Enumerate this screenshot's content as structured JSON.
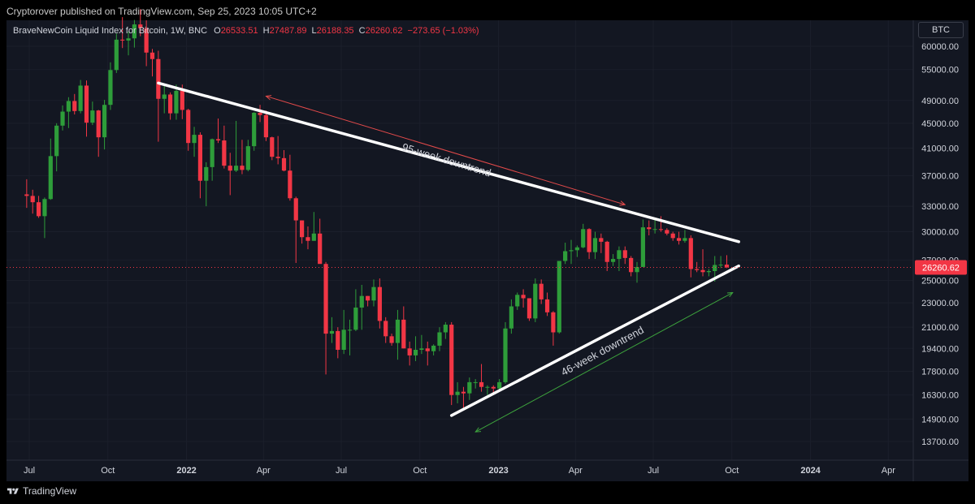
{
  "header": {
    "published": "Cryptorover published on TradingView.com, Sep 25, 2023 10:05 UTC+2"
  },
  "legend": {
    "symbol": "BraveNewCoin Liquid Index for Bitcoin, 1W, BNC",
    "o_label": "O",
    "o_value": "26533.51",
    "h_label": "H",
    "h_value": "27487.89",
    "l_label": "L",
    "l_value": "26188.35",
    "c_label": "C",
    "c_value": "26260.62",
    "change": "−273.65 (−1.03%)"
  },
  "currency_box": "BTC",
  "footer": {
    "brand": "TradingView"
  },
  "colors": {
    "background": "#131722",
    "up": "#26a69a",
    "up_body": "#2e9d3a",
    "down": "#f23645",
    "axis_text": "#d1d4dc",
    "trendline": "#ffffff",
    "arrow_red": "#e34a4a",
    "arrow_green": "#3da33d"
  },
  "chart_data": {
    "type": "candlestick",
    "title": "BraveNewCoin Liquid Index for Bitcoin, 1W, BNC",
    "y_axis": {
      "scale": "log",
      "ticks": [
        "60000.00",
        "55000.00",
        "49000.00",
        "45000.00",
        "41000.00",
        "37000.00",
        "33000.00",
        "30000.00",
        "27000.00",
        "25000.00",
        "23000.00",
        "21000.00",
        "19400.00",
        "17800.00",
        "16300.00",
        "14900.00",
        "13700.00"
      ],
      "last_price": "26260.62"
    },
    "x_axis": {
      "ticks": [
        {
          "label": "Jul",
          "date": "2021-07-01"
        },
        {
          "label": "Oct",
          "date": "2021-10-01"
        },
        {
          "label": "2022",
          "date": "2022-01-01",
          "bold": true
        },
        {
          "label": "Apr",
          "date": "2022-04-01"
        },
        {
          "label": "Jul",
          "date": "2022-07-01"
        },
        {
          "label": "Oct",
          "date": "2022-10-01"
        },
        {
          "label": "2023",
          "date": "2023-01-01",
          "bold": true
        },
        {
          "label": "Apr",
          "date": "2023-04-01"
        },
        {
          "label": "Jul",
          "date": "2023-07-01"
        },
        {
          "label": "Oct",
          "date": "2023-10-01"
        },
        {
          "label": "2024",
          "date": "2024-01-01",
          "bold": true
        },
        {
          "label": "Apr",
          "date": "2024-04-01"
        }
      ]
    },
    "candles": [
      {
        "t": "2021-06-28",
        "o": 34500,
        "h": 36500,
        "l": 32800,
        "c": 34300
      },
      {
        "t": "2021-07-05",
        "o": 34300,
        "h": 35100,
        "l": 32100,
        "c": 33500
      },
      {
        "t": "2021-07-12",
        "o": 33500,
        "h": 34300,
        "l": 31600,
        "c": 31800
      },
      {
        "t": "2021-07-19",
        "o": 31800,
        "h": 34100,
        "l": 29300,
        "c": 33900
      },
      {
        "t": "2021-07-26",
        "o": 33900,
        "h": 42500,
        "l": 33800,
        "c": 39800
      },
      {
        "t": "2021-08-02",
        "o": 39800,
        "h": 45000,
        "l": 37600,
        "c": 44600
      },
      {
        "t": "2021-08-09",
        "o": 44600,
        "h": 48100,
        "l": 43800,
        "c": 47000
      },
      {
        "t": "2021-08-16",
        "o": 47000,
        "h": 49600,
        "l": 44200,
        "c": 48900
      },
      {
        "t": "2021-08-23",
        "o": 48900,
        "h": 50200,
        "l": 46500,
        "c": 47100
      },
      {
        "t": "2021-08-30",
        "o": 47100,
        "h": 52900,
        "l": 46700,
        "c": 51800
      },
      {
        "t": "2021-09-06",
        "o": 51800,
        "h": 52800,
        "l": 42800,
        "c": 45100
      },
      {
        "t": "2021-09-13",
        "o": 45100,
        "h": 48800,
        "l": 44700,
        "c": 47200
      },
      {
        "t": "2021-09-20",
        "o": 47200,
        "h": 47300,
        "l": 39700,
        "c": 42700
      },
      {
        "t": "2021-09-27",
        "o": 42700,
        "h": 49100,
        "l": 40800,
        "c": 48200
      },
      {
        "t": "2021-10-04",
        "o": 48200,
        "h": 56500,
        "l": 47300,
        "c": 54900
      },
      {
        "t": "2021-10-11",
        "o": 54900,
        "h": 62900,
        "l": 54300,
        "c": 61500
      },
      {
        "t": "2021-10-18",
        "o": 61500,
        "h": 66900,
        "l": 59600,
        "c": 61300
      },
      {
        "t": "2021-10-25",
        "o": 61300,
        "h": 63400,
        "l": 58000,
        "c": 61800
      },
      {
        "t": "2021-11-01",
        "o": 61800,
        "h": 66200,
        "l": 59700,
        "c": 65100
      },
      {
        "t": "2021-11-08",
        "o": 65100,
        "h": 68900,
        "l": 62300,
        "c": 64200
      },
      {
        "t": "2021-11-15",
        "o": 64200,
        "h": 66100,
        "l": 55700,
        "c": 58600
      },
      {
        "t": "2021-11-22",
        "o": 58600,
        "h": 59400,
        "l": 53600,
        "c": 57200
      },
      {
        "t": "2021-11-29",
        "o": 57200,
        "h": 59000,
        "l": 42000,
        "c": 49300
      },
      {
        "t": "2021-12-06",
        "o": 49300,
        "h": 51900,
        "l": 46700,
        "c": 50100
      },
      {
        "t": "2021-12-13",
        "o": 50100,
        "h": 50500,
        "l": 45600,
        "c": 46700
      },
      {
        "t": "2021-12-20",
        "o": 46700,
        "h": 52000,
        "l": 45600,
        "c": 50800
      },
      {
        "t": "2021-12-27",
        "o": 50800,
        "h": 52000,
        "l": 45700,
        "c": 47300
      },
      {
        "t": "2022-01-03",
        "o": 47300,
        "h": 47500,
        "l": 40600,
        "c": 41800
      },
      {
        "t": "2022-01-10",
        "o": 41800,
        "h": 44400,
        "l": 39700,
        "c": 43100
      },
      {
        "t": "2022-01-17",
        "o": 43100,
        "h": 43500,
        "l": 34000,
        "c": 36300
      },
      {
        "t": "2022-01-24",
        "o": 36300,
        "h": 38900,
        "l": 33000,
        "c": 38200
      },
      {
        "t": "2022-01-31",
        "o": 38200,
        "h": 42500,
        "l": 36300,
        "c": 42400
      },
      {
        "t": "2022-02-07",
        "o": 42400,
        "h": 45800,
        "l": 41800,
        "c": 42200
      },
      {
        "t": "2022-02-14",
        "o": 42200,
        "h": 44600,
        "l": 38000,
        "c": 38400
      },
      {
        "t": "2022-02-21",
        "o": 38400,
        "h": 40300,
        "l": 34400,
        "c": 37700
      },
      {
        "t": "2022-02-28",
        "o": 37700,
        "h": 45400,
        "l": 37500,
        "c": 38400
      },
      {
        "t": "2022-03-07",
        "o": 38400,
        "h": 42300,
        "l": 37200,
        "c": 37800
      },
      {
        "t": "2022-03-14",
        "o": 37800,
        "h": 42300,
        "l": 37600,
        "c": 41300
      },
      {
        "t": "2022-03-21",
        "o": 41300,
        "h": 46900,
        "l": 40600,
        "c": 46800
      },
      {
        "t": "2022-03-28",
        "o": 46800,
        "h": 48200,
        "l": 45200,
        "c": 46400
      },
      {
        "t": "2022-04-04",
        "o": 46400,
        "h": 47200,
        "l": 42100,
        "c": 42700
      },
      {
        "t": "2022-04-11",
        "o": 42700,
        "h": 42800,
        "l": 39200,
        "c": 39700
      },
      {
        "t": "2022-04-18",
        "o": 39700,
        "h": 42900,
        "l": 38600,
        "c": 39500
      },
      {
        "t": "2022-04-25",
        "o": 39500,
        "h": 40700,
        "l": 37600,
        "c": 37700
      },
      {
        "t": "2022-05-02",
        "o": 37700,
        "h": 40000,
        "l": 33700,
        "c": 34000
      },
      {
        "t": "2022-05-09",
        "o": 34000,
        "h": 34200,
        "l": 26700,
        "c": 31300
      },
      {
        "t": "2022-05-16",
        "o": 31300,
        "h": 31300,
        "l": 28700,
        "c": 29400
      },
      {
        "t": "2022-05-23",
        "o": 29400,
        "h": 30600,
        "l": 28100,
        "c": 29000
      },
      {
        "t": "2022-05-30",
        "o": 29000,
        "h": 32300,
        "l": 29000,
        "c": 29800
      },
      {
        "t": "2022-06-06",
        "o": 29800,
        "h": 31500,
        "l": 26700,
        "c": 26600
      },
      {
        "t": "2022-06-13",
        "o": 26600,
        "h": 26800,
        "l": 17600,
        "c": 20500
      },
      {
        "t": "2022-06-20",
        "o": 20500,
        "h": 21800,
        "l": 19800,
        "c": 20700
      },
      {
        "t": "2022-06-27",
        "o": 20700,
        "h": 21000,
        "l": 18700,
        "c": 19300
      },
      {
        "t": "2022-07-04",
        "o": 19300,
        "h": 22400,
        "l": 19000,
        "c": 20800
      },
      {
        "t": "2022-07-11",
        "o": 20800,
        "h": 21600,
        "l": 18900,
        "c": 20800
      },
      {
        "t": "2022-07-18",
        "o": 20800,
        "h": 24200,
        "l": 20700,
        "c": 22600
      },
      {
        "t": "2022-07-25",
        "o": 22600,
        "h": 24600,
        "l": 20800,
        "c": 23600
      },
      {
        "t": "2022-08-01",
        "o": 23600,
        "h": 23600,
        "l": 22700,
        "c": 23200
      },
      {
        "t": "2022-08-08",
        "o": 23200,
        "h": 25100,
        "l": 22700,
        "c": 24400
      },
      {
        "t": "2022-08-15",
        "o": 24400,
        "h": 25200,
        "l": 20900,
        "c": 21500
      },
      {
        "t": "2022-08-22",
        "o": 21500,
        "h": 21800,
        "l": 19800,
        "c": 20300
      },
      {
        "t": "2022-08-29",
        "o": 20300,
        "h": 20500,
        "l": 19600,
        "c": 19800
      },
      {
        "t": "2022-09-05",
        "o": 19800,
        "h": 22400,
        "l": 18600,
        "c": 21600
      },
      {
        "t": "2022-09-12",
        "o": 21600,
        "h": 22700,
        "l": 19400,
        "c": 19400
      },
      {
        "t": "2022-09-19",
        "o": 19400,
        "h": 19900,
        "l": 18200,
        "c": 18900
      },
      {
        "t": "2022-09-26",
        "o": 18900,
        "h": 20300,
        "l": 18500,
        "c": 19300
      },
      {
        "t": "2022-10-03",
        "o": 19300,
        "h": 20400,
        "l": 19000,
        "c": 19400
      },
      {
        "t": "2022-10-10",
        "o": 19400,
        "h": 19900,
        "l": 18200,
        "c": 19200
      },
      {
        "t": "2022-10-17",
        "o": 19200,
        "h": 19700,
        "l": 18900,
        "c": 19600
      },
      {
        "t": "2022-10-24",
        "o": 19600,
        "h": 21000,
        "l": 19200,
        "c": 20600
      },
      {
        "t": "2022-10-31",
        "o": 20600,
        "h": 21400,
        "l": 20100,
        "c": 21200
      },
      {
        "t": "2022-11-07",
        "o": 21200,
        "h": 21400,
        "l": 15700,
        "c": 16300
      },
      {
        "t": "2022-11-14",
        "o": 16300,
        "h": 17100,
        "l": 15800,
        "c": 16500
      },
      {
        "t": "2022-11-21",
        "o": 16500,
        "h": 16800,
        "l": 15500,
        "c": 16400
      },
      {
        "t": "2022-11-28",
        "o": 16400,
        "h": 17400,
        "l": 16000,
        "c": 17100
      },
      {
        "t": "2022-12-05",
        "o": 17100,
        "h": 17300,
        "l": 16700,
        "c": 17100
      },
      {
        "t": "2022-12-12",
        "o": 17100,
        "h": 18300,
        "l": 16500,
        "c": 16800
      },
      {
        "t": "2022-12-19",
        "o": 16800,
        "h": 16900,
        "l": 16300,
        "c": 16800
      },
      {
        "t": "2022-12-26",
        "o": 16800,
        "h": 16900,
        "l": 16400,
        "c": 16700
      },
      {
        "t": "2023-01-02",
        "o": 16700,
        "h": 17300,
        "l": 16600,
        "c": 17100
      },
      {
        "t": "2023-01-09",
        "o": 17100,
        "h": 21400,
        "l": 17000,
        "c": 20900
      },
      {
        "t": "2023-01-16",
        "o": 20900,
        "h": 23300,
        "l": 20500,
        "c": 22700
      },
      {
        "t": "2023-01-23",
        "o": 22700,
        "h": 23900,
        "l": 22400,
        "c": 23700
      },
      {
        "t": "2023-01-30",
        "o": 23700,
        "h": 24200,
        "l": 22600,
        "c": 23400
      },
      {
        "t": "2023-02-06",
        "o": 23400,
        "h": 23400,
        "l": 21500,
        "c": 21700
      },
      {
        "t": "2023-02-13",
        "o": 21700,
        "h": 25200,
        "l": 21400,
        "c": 24700
      },
      {
        "t": "2023-02-20",
        "o": 24700,
        "h": 25100,
        "l": 22900,
        "c": 23300
      },
      {
        "t": "2023-02-27",
        "o": 23300,
        "h": 23900,
        "l": 21900,
        "c": 22200
      },
      {
        "t": "2023-03-06",
        "o": 22200,
        "h": 22300,
        "l": 19600,
        "c": 20600
      },
      {
        "t": "2023-03-13",
        "o": 20600,
        "h": 26500,
        "l": 20500,
        "c": 26900
      },
      {
        "t": "2023-03-20",
        "o": 26900,
        "h": 28800,
        "l": 26600,
        "c": 27900
      },
      {
        "t": "2023-03-27",
        "o": 27900,
        "h": 29100,
        "l": 26600,
        "c": 28000
      },
      {
        "t": "2023-04-03",
        "o": 28000,
        "h": 28500,
        "l": 27300,
        "c": 28300
      },
      {
        "t": "2023-04-10",
        "o": 28300,
        "h": 30900,
        "l": 28200,
        "c": 30300
      },
      {
        "t": "2023-04-17",
        "o": 30300,
        "h": 30400,
        "l": 27100,
        "c": 27800
      },
      {
        "t": "2023-04-24",
        "o": 27800,
        "h": 30000,
        "l": 27100,
        "c": 29300
      },
      {
        "t": "2023-05-01",
        "o": 29300,
        "h": 29800,
        "l": 27700,
        "c": 28900
      },
      {
        "t": "2023-05-08",
        "o": 28900,
        "h": 29000,
        "l": 25900,
        "c": 26800
      },
      {
        "t": "2023-05-15",
        "o": 26800,
        "h": 27600,
        "l": 26400,
        "c": 27100
      },
      {
        "t": "2023-05-22",
        "o": 27100,
        "h": 28400,
        "l": 25900,
        "c": 28000
      },
      {
        "t": "2023-05-29",
        "o": 28000,
        "h": 28400,
        "l": 26600,
        "c": 27200
      },
      {
        "t": "2023-06-05",
        "o": 27200,
        "h": 27400,
        "l": 25400,
        "c": 25800
      },
      {
        "t": "2023-06-12",
        "o": 25800,
        "h": 26800,
        "l": 24800,
        "c": 26300
      },
      {
        "t": "2023-06-19",
        "o": 26300,
        "h": 31400,
        "l": 26300,
        "c": 30500
      },
      {
        "t": "2023-06-26",
        "o": 30500,
        "h": 31300,
        "l": 29600,
        "c": 30300
      },
      {
        "t": "2023-07-03",
        "o": 30300,
        "h": 31500,
        "l": 29800,
        "c": 30300
      },
      {
        "t": "2023-07-10",
        "o": 30300,
        "h": 31800,
        "l": 30000,
        "c": 30200
      },
      {
        "t": "2023-07-17",
        "o": 30200,
        "h": 30400,
        "l": 29600,
        "c": 29800
      },
      {
        "t": "2023-07-24",
        "o": 29800,
        "h": 30000,
        "l": 29000,
        "c": 29300
      },
      {
        "t": "2023-07-31",
        "o": 29300,
        "h": 30000,
        "l": 28600,
        "c": 29000
      },
      {
        "t": "2023-08-07",
        "o": 29000,
        "h": 30200,
        "l": 28800,
        "c": 29300
      },
      {
        "t": "2023-08-14",
        "o": 29300,
        "h": 29600,
        "l": 25300,
        "c": 26100
      },
      {
        "t": "2023-08-21",
        "o": 26100,
        "h": 26800,
        "l": 25800,
        "c": 26000
      },
      {
        "t": "2023-08-28",
        "o": 26000,
        "h": 28100,
        "l": 25400,
        "c": 25800
      },
      {
        "t": "2023-09-04",
        "o": 25800,
        "h": 26100,
        "l": 25400,
        "c": 25900
      },
      {
        "t": "2023-09-11",
        "o": 25900,
        "h": 27400,
        "l": 24900,
        "c": 26500
      },
      {
        "t": "2023-09-18",
        "o": 26500,
        "h": 27400,
        "l": 26200,
        "c": 26530
      },
      {
        "t": "2023-09-25",
        "o": 26533.51,
        "h": 27487.89,
        "l": 26188.35,
        "c": 26260.62
      }
    ],
    "annotations": [
      {
        "type": "trendline",
        "from": {
          "t": "2021-11-29",
          "v": 52300
        },
        "to": {
          "t": "2023-10-09",
          "v": 28900
        }
      },
      {
        "type": "trendline",
        "from": {
          "t": "2022-11-07",
          "v": 15100
        },
        "to": {
          "t": "2023-10-09",
          "v": 26400
        }
      },
      {
        "type": "arrow",
        "label": "95-week downtrend",
        "color": "red",
        "from": {
          "t": "2022-04-04",
          "v": 49800
        },
        "to": {
          "t": "2023-05-29",
          "v": 33200
        }
      },
      {
        "type": "arrow",
        "label": "46-week downtrend",
        "color": "green",
        "from": {
          "t": "2022-12-05",
          "v": 14200
        },
        "to": {
          "t": "2023-10-02",
          "v": 23900
        }
      }
    ]
  }
}
